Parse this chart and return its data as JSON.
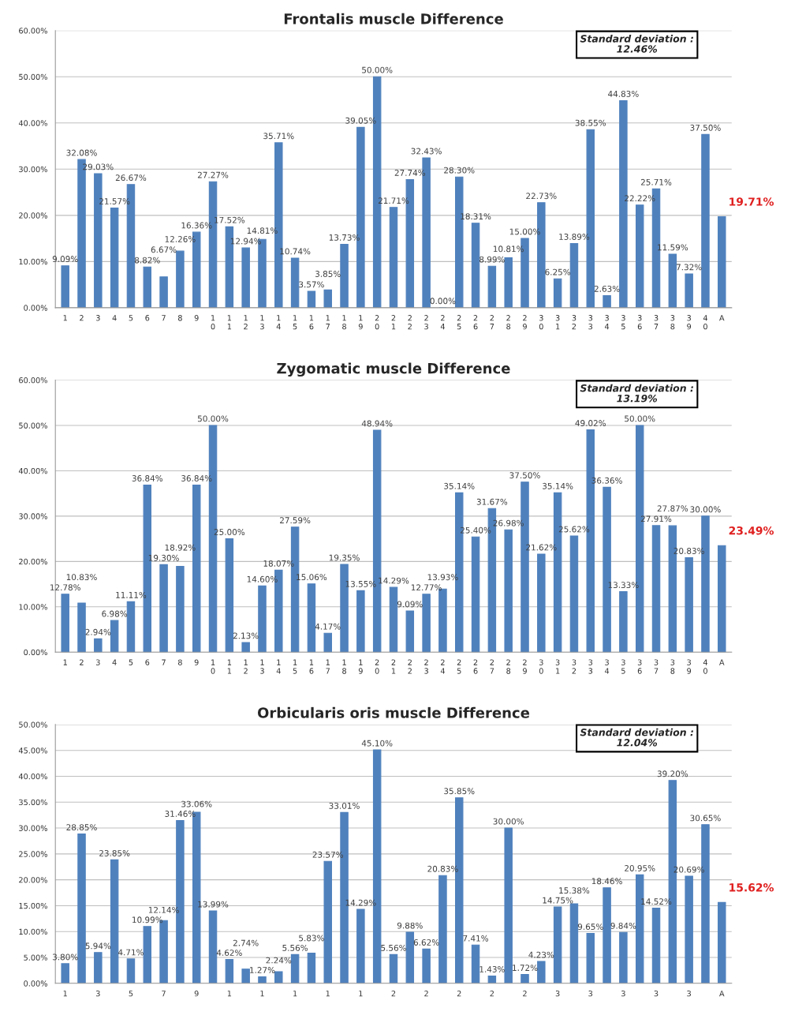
{
  "chart_data": [
    {
      "type": "bar",
      "title": "Frontalis muscle Difference",
      "categories": [
        "1",
        "2",
        "3",
        "4",
        "5",
        "6",
        "7",
        "8",
        "9",
        "10",
        "11",
        "12",
        "13",
        "14",
        "15",
        "16",
        "17",
        "18",
        "19",
        "20",
        "21",
        "22",
        "23",
        "24",
        "25",
        "26",
        "27",
        "28",
        "29",
        "30",
        "31",
        "32",
        "33",
        "34",
        "35",
        "36",
        "37",
        "38",
        "39",
        "40",
        "A"
      ],
      "values": [
        9.09,
        32.08,
        29.03,
        21.57,
        26.67,
        8.82,
        6.67,
        12.26,
        16.36,
        27.27,
        17.52,
        12.94,
        14.81,
        35.71,
        10.74,
        3.57,
        3.85,
        13.73,
        39.05,
        50.0,
        21.71,
        27.74,
        32.43,
        0.0,
        28.3,
        18.31,
        8.99,
        10.81,
        15.0,
        22.73,
        6.25,
        13.89,
        38.55,
        2.63,
        44.83,
        22.22,
        25.71,
        11.59,
        7.32,
        37.5,
        19.71
      ],
      "value_labels": [
        "9.09%",
        "32.08%",
        "29.03%",
        "21.57%",
        "26.67%",
        "8.82%",
        "6.67%",
        "12.26%",
        "16.36%",
        "27.27%",
        "17.52%",
        "12.94%",
        "14.81%",
        "35.71%",
        "10.74%",
        "3.57%",
        "3.85%",
        "13.73%",
        "39.05%",
        "50.00%",
        "21.71%",
        "27.74%",
        "32.43%",
        "0.00%",
        "28.30%",
        "18.31%",
        "8.99%",
        "10.81%",
        "15.00%",
        "22.73%",
        "6.25%",
        "13.89%",
        "38.55%",
        "2.63%",
        "44.83%",
        "22.22%",
        "25.71%",
        "11.59%",
        "7.32%",
        "37.50%",
        null
      ],
      "color": "#4f81bd",
      "ylim": [
        0,
        60
      ],
      "yticks": [
        {
          "value": 0,
          "label": "0.00%"
        },
        {
          "value": 10,
          "label": "10.00%"
        },
        {
          "value": 20,
          "label": "20.00%"
        },
        {
          "value": 30,
          "label": "30.00%"
        },
        {
          "value": 40,
          "label": "40.00%"
        },
        {
          "value": 50,
          "label": "50.00%"
        },
        {
          "value": 60,
          "label": "60.00%"
        }
      ],
      "grid": "y",
      "annotations": [
        "Standard deviation :\n12.46%",
        {
          "text": "19.71%",
          "x": "A",
          "y": 19.71
        }
      ]
    },
    {
      "type": "bar",
      "title": "Zygomatic muscle Difference",
      "categories": [
        "1",
        "2",
        "3",
        "4",
        "5",
        "6",
        "7",
        "8",
        "9",
        "10",
        "11",
        "12",
        "13",
        "14",
        "15",
        "16",
        "17",
        "18",
        "19",
        "20",
        "21",
        "22",
        "23",
        "24",
        "25",
        "26",
        "27",
        "28",
        "29",
        "30",
        "31",
        "32",
        "33",
        "34",
        "35",
        "36",
        "37",
        "38",
        "39",
        "40",
        "A"
      ],
      "values": [
        12.78,
        10.83,
        2.94,
        6.98,
        11.11,
        36.84,
        19.3,
        18.92,
        36.84,
        50.0,
        25.0,
        2.13,
        14.6,
        18.07,
        27.59,
        15.06,
        4.17,
        19.35,
        13.55,
        48.94,
        14.29,
        9.09,
        12.77,
        13.93,
        35.14,
        25.4,
        31.67,
        26.98,
        37.5,
        21.62,
        35.14,
        25.62,
        49.02,
        36.36,
        13.33,
        50.0,
        27.91,
        27.87,
        20.83,
        30.0,
        23.49
      ],
      "value_labels": [
        "12.78%",
        "10.83%",
        "2.94%",
        "6.98%",
        "11.11%",
        "36.84%",
        "19.30%",
        "18.92%",
        "36.84%",
        "50.00%",
        "25.00%",
        "2.13%",
        "14.60%",
        "18.07%",
        "27.59%",
        "15.06%",
        "4.17%",
        "19.35%",
        "13.55%",
        "48.94%",
        "14.29%",
        "9.09%",
        "12.77%",
        "13.93%",
        "35.14%",
        "25.40%",
        "31.67%",
        "26.98%",
        "37.50%",
        "21.62%",
        "35.14%",
        "25.62%",
        "49.02%",
        "36.36%",
        "13.33%",
        "50.00%",
        "27.91%",
        "27.87%",
        "20.83%",
        "30.00%",
        null
      ],
      "color": "#4f81bd",
      "ylim": [
        0,
        60
      ],
      "yticks": [
        {
          "value": 0,
          "label": "0.00%"
        },
        {
          "value": 10,
          "label": "10.00%"
        },
        {
          "value": 20,
          "label": "20.00%"
        },
        {
          "value": 30,
          "label": "30.00%"
        },
        {
          "value": 40,
          "label": "40.00%"
        },
        {
          "value": 50,
          "label": "50.00%"
        },
        {
          "value": 60,
          "label": "60.00%"
        }
      ],
      "grid": "y",
      "annotations": [
        "Standard deviation :\n13.19%",
        {
          "text": "23.49%",
          "x": "A",
          "y": 23.49
        }
      ]
    },
    {
      "type": "bar",
      "title": "Orbicularis oris muscle Difference",
      "categories": [
        "1",
        null,
        "3",
        null,
        "5",
        null,
        "7",
        null,
        "9",
        null,
        "1",
        null,
        "1",
        null,
        "1",
        null,
        "1",
        null,
        "1",
        null,
        "2",
        null,
        "2",
        null,
        "2",
        null,
        "2",
        null,
        "2",
        null,
        "3",
        null,
        "3",
        null,
        "3",
        null,
        "3",
        null,
        "3",
        null,
        "A"
      ],
      "values": [
        3.8,
        28.85,
        5.94,
        23.85,
        4.71,
        10.99,
        12.14,
        31.46,
        33.06,
        13.99,
        4.62,
        2.74,
        1.27,
        2.24,
        5.56,
        5.83,
        23.57,
        33.01,
        14.29,
        45.1,
        5.56,
        9.88,
        6.62,
        20.83,
        35.85,
        7.41,
        1.43,
        30.0,
        1.72,
        4.23,
        14.75,
        15.38,
        9.65,
        18.46,
        9.84,
        20.95,
        14.52,
        39.2,
        20.69,
        30.65,
        15.62
      ],
      "value_labels": [
        "3.80%",
        "28.85%",
        "5.94%",
        "23.85%",
        "4.71%",
        "10.99%",
        "12.14%",
        "31.46%",
        "33.06%",
        "13.99%",
        "4.62%",
        "2.74%",
        "1.27%",
        "2.24%",
        "5.56%",
        "5.83%",
        "23.57%",
        "33.01%",
        "14.29%",
        "45.10%",
        "5.56%",
        "9.88%",
        "6.62%",
        "20.83%",
        "35.85%",
        "7.41%",
        "1.43%",
        "30.00%",
        "1.72%",
        "4.23%",
        "14.75%",
        "15.38%",
        "9.65%",
        "18.46%",
        "9.84%",
        "20.95%",
        "14.52%",
        "39.20%",
        "20.69%",
        "30.65%",
        null
      ],
      "color": "#4f81bd",
      "ylim": [
        0,
        50
      ],
      "yticks": [
        {
          "value": 0,
          "label": "0.00%"
        },
        {
          "value": 5,
          "label": "5.00%"
        },
        {
          "value": 10,
          "label": "10.00%"
        },
        {
          "value": 15,
          "label": "15.00%"
        },
        {
          "value": 20,
          "label": "20.00%"
        },
        {
          "value": 25,
          "label": "25.00%"
        },
        {
          "value": 30,
          "label": "30.00%"
        },
        {
          "value": 35,
          "label": "35.00%"
        },
        {
          "value": 40,
          "label": "40.00%"
        },
        {
          "value": 45,
          "label": "45.00%"
        },
        {
          "value": 50,
          "label": "50.00%"
        }
      ],
      "grid": "y",
      "annotations": [
        "Standard deviation :\n12.04%",
        {
          "text": "15.62%",
          "x": "A",
          "y": 15.62
        }
      ]
    }
  ]
}
